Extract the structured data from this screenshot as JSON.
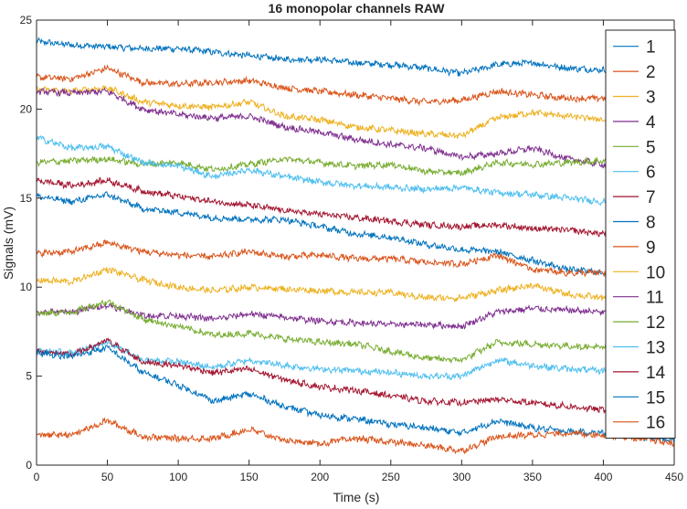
{
  "chart_data": {
    "type": "line",
    "title": "16 monopolar channels RAW",
    "xlabel": "Time (s)",
    "ylabel": "Signals (mV)",
    "xlim": [
      0,
      450
    ],
    "ylim": [
      0,
      25
    ],
    "xticks": [
      0,
      50,
      100,
      150,
      200,
      250,
      300,
      350,
      400,
      450
    ],
    "yticks": [
      0,
      5,
      10,
      15,
      20,
      25
    ],
    "grid": false,
    "legend_position": "right",
    "series": [
      {
        "name": "1",
        "color": "#0072BD",
        "x": [
          0,
          25,
          50,
          75,
          100,
          125,
          150,
          175,
          200,
          225,
          250,
          275,
          300,
          325,
          350,
          375,
          400,
          425,
          450
        ],
        "y": [
          23.8,
          23.6,
          23.5,
          23.4,
          23.4,
          23.2,
          23.0,
          22.8,
          22.8,
          22.6,
          22.5,
          22.3,
          22.0,
          22.5,
          22.6,
          22.3,
          22.2,
          22.1,
          21.8
        ]
      },
      {
        "name": "2",
        "color": "#D95319",
        "x": [
          0,
          25,
          50,
          75,
          100,
          125,
          150,
          175,
          200,
          225,
          250,
          275,
          300,
          325,
          350,
          375,
          400,
          425,
          450
        ],
        "y": [
          21.8,
          21.7,
          22.3,
          21.5,
          21.4,
          21.5,
          21.6,
          21.2,
          21.0,
          20.8,
          20.6,
          20.4,
          20.5,
          21.0,
          20.8,
          20.6,
          20.6,
          20.5,
          20.4
        ]
      },
      {
        "name": "3",
        "color": "#EDB120",
        "x": [
          0,
          25,
          50,
          75,
          100,
          125,
          150,
          175,
          200,
          225,
          250,
          275,
          300,
          325,
          350,
          375,
          400,
          425,
          450
        ],
        "y": [
          21.1,
          21.0,
          21.2,
          20.4,
          20.2,
          20.1,
          20.4,
          19.6,
          19.4,
          19.0,
          18.8,
          18.6,
          18.5,
          19.5,
          19.8,
          19.6,
          19.4,
          19.2,
          18.8
        ]
      },
      {
        "name": "4",
        "color": "#7E2F8E",
        "x": [
          0,
          25,
          50,
          75,
          100,
          125,
          150,
          175,
          200,
          225,
          250,
          275,
          300,
          325,
          350,
          375,
          400,
          425,
          450
        ],
        "y": [
          21.0,
          20.9,
          21.0,
          20.0,
          19.7,
          19.5,
          19.6,
          19.0,
          18.7,
          18.3,
          18.0,
          17.8,
          17.3,
          17.5,
          17.8,
          17.2,
          16.9,
          16.6,
          16.2
        ]
      },
      {
        "name": "5",
        "color": "#77AC30",
        "x": [
          0,
          25,
          50,
          75,
          100,
          125,
          150,
          175,
          200,
          225,
          250,
          275,
          300,
          325,
          350,
          375,
          400,
          425,
          450
        ],
        "y": [
          17.0,
          17.1,
          17.2,
          16.9,
          17.0,
          16.6,
          16.9,
          17.2,
          17.0,
          16.8,
          16.9,
          16.5,
          16.4,
          17.0,
          16.9,
          17.0,
          17.1,
          17.0,
          16.9
        ]
      },
      {
        "name": "6",
        "color": "#4DBEEE",
        "x": [
          0,
          25,
          50,
          75,
          100,
          125,
          150,
          175,
          200,
          225,
          250,
          275,
          300,
          325,
          350,
          375,
          400,
          425,
          450
        ],
        "y": [
          18.4,
          17.8,
          17.9,
          17.0,
          16.8,
          16.2,
          16.6,
          16.2,
          15.9,
          15.7,
          15.6,
          15.5,
          15.6,
          15.3,
          15.2,
          15.0,
          14.8,
          14.5,
          14.2
        ]
      },
      {
        "name": "7",
        "color": "#A2142F",
        "x": [
          0,
          25,
          50,
          75,
          100,
          125,
          150,
          175,
          200,
          225,
          250,
          275,
          300,
          325,
          350,
          375,
          400,
          425,
          450
        ],
        "y": [
          16.0,
          15.7,
          16.0,
          15.4,
          15.1,
          14.8,
          14.6,
          14.3,
          14.1,
          13.9,
          13.7,
          13.5,
          13.4,
          13.5,
          13.3,
          13.2,
          13.0,
          12.9,
          12.8
        ]
      },
      {
        "name": "8",
        "color": "#0072BD",
        "x": [
          0,
          25,
          50,
          75,
          100,
          125,
          150,
          175,
          200,
          225,
          250,
          275,
          300,
          325,
          350,
          375,
          400,
          425,
          450
        ],
        "y": [
          15.1,
          14.8,
          15.2,
          14.4,
          14.2,
          13.9,
          13.8,
          13.8,
          13.4,
          13.0,
          12.8,
          12.4,
          12.1,
          12.0,
          11.5,
          11.0,
          10.8,
          10.6,
          10.4
        ]
      },
      {
        "name": "9",
        "color": "#D95319",
        "x": [
          0,
          25,
          50,
          75,
          100,
          125,
          150,
          175,
          200,
          225,
          250,
          275,
          300,
          325,
          350,
          375,
          400,
          425,
          450
        ],
        "y": [
          11.9,
          12.0,
          12.5,
          12.0,
          11.8,
          11.7,
          12.0,
          11.7,
          11.8,
          11.6,
          11.6,
          11.4,
          11.3,
          11.8,
          11.0,
          10.8,
          10.8,
          10.6,
          10.4
        ]
      },
      {
        "name": "10",
        "color": "#EDB120",
        "x": [
          0,
          25,
          50,
          75,
          100,
          125,
          150,
          175,
          200,
          225,
          250,
          275,
          300,
          325,
          350,
          375,
          400,
          425,
          450
        ],
        "y": [
          10.4,
          10.3,
          11.0,
          10.4,
          10.0,
          9.8,
          10.0,
          9.9,
          9.8,
          9.7,
          9.7,
          9.4,
          9.4,
          9.8,
          10.1,
          9.6,
          9.4,
          9.3,
          9.2
        ]
      },
      {
        "name": "11",
        "color": "#7E2F8E",
        "x": [
          0,
          25,
          50,
          75,
          100,
          125,
          150,
          175,
          200,
          225,
          250,
          275,
          300,
          325,
          350,
          375,
          400,
          425,
          450
        ],
        "y": [
          8.6,
          8.6,
          9.0,
          8.4,
          8.4,
          8.2,
          8.5,
          8.3,
          8.1,
          8.0,
          7.9,
          7.9,
          7.8,
          8.6,
          8.8,
          8.7,
          8.6,
          8.5,
          8.4
        ]
      },
      {
        "name": "12",
        "color": "#77AC30",
        "x": [
          0,
          25,
          50,
          75,
          100,
          125,
          150,
          175,
          200,
          225,
          250,
          275,
          300,
          325,
          350,
          375,
          400,
          425,
          450
        ],
        "y": [
          8.5,
          8.6,
          9.2,
          8.2,
          7.8,
          7.3,
          7.4,
          7.1,
          6.9,
          6.8,
          6.4,
          6.0,
          5.9,
          6.9,
          6.8,
          6.7,
          6.6,
          6.5,
          6.4
        ]
      },
      {
        "name": "13",
        "color": "#4DBEEE",
        "x": [
          0,
          25,
          50,
          75,
          100,
          125,
          150,
          175,
          200,
          225,
          250,
          275,
          300,
          325,
          350,
          375,
          400,
          425,
          450
        ],
        "y": [
          6.4,
          6.3,
          6.9,
          5.9,
          5.8,
          5.5,
          5.9,
          5.6,
          5.4,
          5.3,
          5.2,
          5.0,
          5.0,
          5.9,
          5.6,
          5.4,
          5.3,
          5.2,
          5.0
        ]
      },
      {
        "name": "14",
        "color": "#A2142F",
        "x": [
          0,
          25,
          50,
          75,
          100,
          125,
          150,
          175,
          200,
          225,
          250,
          275,
          300,
          325,
          350,
          375,
          400,
          425,
          450
        ],
        "y": [
          6.4,
          6.2,
          7.0,
          5.8,
          5.6,
          5.2,
          5.4,
          4.8,
          4.4,
          4.2,
          3.9,
          3.6,
          3.5,
          3.7,
          3.5,
          3.3,
          3.1,
          3.0,
          2.9
        ]
      },
      {
        "name": "15",
        "color": "#0072BD",
        "x": [
          0,
          25,
          50,
          75,
          100,
          125,
          150,
          175,
          200,
          225,
          250,
          275,
          300,
          325,
          350,
          375,
          400,
          425,
          450
        ],
        "y": [
          6.3,
          6.1,
          6.6,
          5.2,
          4.5,
          3.6,
          4.0,
          3.3,
          2.8,
          2.6,
          2.3,
          2.1,
          1.8,
          2.5,
          2.1,
          1.9,
          1.8,
          1.6,
          1.4
        ]
      },
      {
        "name": "16",
        "color": "#D95319",
        "x": [
          0,
          25,
          50,
          75,
          100,
          125,
          150,
          175,
          200,
          225,
          250,
          275,
          300,
          325,
          350,
          375,
          400,
          425,
          450
        ],
        "y": [
          1.7,
          1.7,
          2.5,
          1.6,
          1.5,
          1.5,
          2.0,
          1.4,
          1.2,
          1.5,
          1.3,
          1.1,
          0.8,
          1.6,
          1.7,
          1.8,
          1.7,
          1.5,
          1.2
        ]
      }
    ]
  }
}
